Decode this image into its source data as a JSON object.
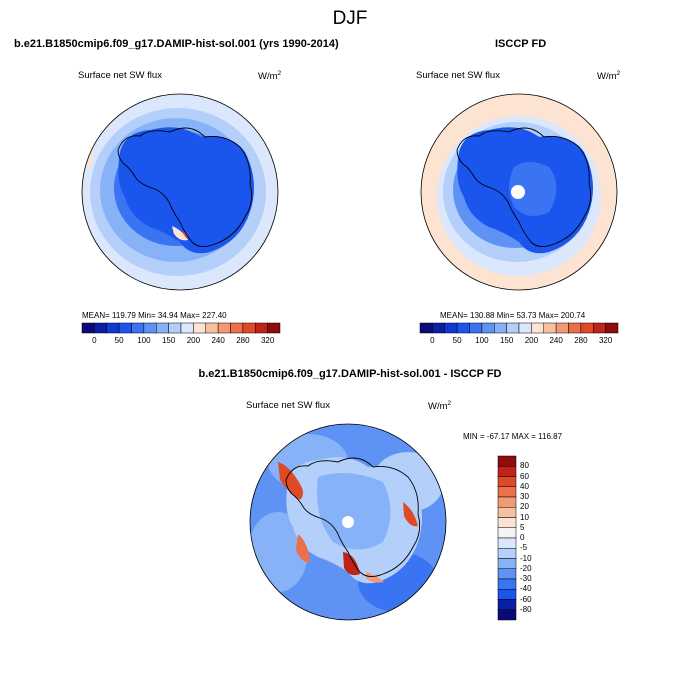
{
  "page": {
    "title": "DJF"
  },
  "panels": {
    "model": {
      "title": "b.e21.B1850cmip6.f09_g17.DAMIP-hist-sol.001 (yrs 1990-2014)",
      "variable": "Surface net SW flux",
      "units": "W/m",
      "units_sup": "2",
      "stats": "MEAN= 119.79  Min=  34.94  Max= 227.40"
    },
    "obs": {
      "title": "ISCCP FD",
      "variable": "Surface net SW flux",
      "units": "W/m",
      "units_sup": "2",
      "stats": "MEAN= 130.88  Min=  53.73  Max= 200.74"
    },
    "diff": {
      "title": "b.e21.B1850cmip6.f09_g17.DAMIP-hist-sol.001 - ISCCP FD",
      "variable": "Surface net SW flux",
      "units": "W/m",
      "units_sup": "2",
      "stats": "MIN = -67.17  MAX = 116.87"
    }
  },
  "chart_data": [
    {
      "type": "heatmap",
      "projection": "south polar stereographic",
      "title": "b.e21.B1850cmip6.f09_g17.DAMIP-hist-sol.001 (yrs 1990-2014)",
      "variable": "Surface net SW flux",
      "units": "W/m2",
      "mean": 119.79,
      "min": 34.94,
      "max": 227.4,
      "colorbar": {
        "orientation": "horizontal",
        "tick_labels": [
          "0",
          "50",
          "100",
          "150",
          "200",
          "240",
          "280",
          "320"
        ],
        "colors": [
          "#0a0a7a",
          "#0b1fa6",
          "#0d3bd2",
          "#1a56ee",
          "#3a74f2",
          "#5e93f5",
          "#88b2f7",
          "#b3cffa",
          "#dbe7fc",
          "#fde4d2",
          "#f8bfa0",
          "#f39a74",
          "#ec7049",
          "#de4a26",
          "#c0231a",
          "#8e0c0c"
        ]
      }
    },
    {
      "type": "heatmap",
      "projection": "south polar stereographic",
      "title": "ISCCP FD",
      "variable": "Surface net SW flux",
      "units": "W/m2",
      "mean": 130.88,
      "min": 53.73,
      "max": 200.74,
      "colorbar": {
        "orientation": "horizontal",
        "tick_labels": [
          "0",
          "50",
          "100",
          "150",
          "200",
          "240",
          "280",
          "320"
        ],
        "colors": [
          "#0a0a7a",
          "#0b1fa6",
          "#0d3bd2",
          "#1a56ee",
          "#3a74f2",
          "#5e93f5",
          "#88b2f7",
          "#b3cffa",
          "#dbe7fc",
          "#fde4d2",
          "#f8bfa0",
          "#f39a74",
          "#ec7049",
          "#de4a26",
          "#c0231a",
          "#8e0c0c"
        ]
      }
    },
    {
      "type": "heatmap",
      "projection": "south polar stereographic",
      "title": "b.e21.B1850cmip6.f09_g17.DAMIP-hist-sol.001 - ISCCP FD",
      "variable": "Surface net SW flux",
      "units": "W/m2",
      "min": -67.17,
      "max": 116.87,
      "colorbar": {
        "orientation": "vertical",
        "tick_labels": [
          "80",
          "60",
          "40",
          "30",
          "20",
          "10",
          "5",
          "0",
          "-5",
          "-10",
          "-20",
          "-30",
          "-40",
          "-60",
          "-80"
        ],
        "colors": [
          "#8e0c0c",
          "#c0231a",
          "#de4a26",
          "#ec7049",
          "#f39a74",
          "#f8bfa0",
          "#fde4d2",
          "#f4f4f4",
          "#dbe7fc",
          "#b3cffa",
          "#88b2f7",
          "#5e93f5",
          "#3a74f2",
          "#1a56ee",
          "#0b1fa6",
          "#0a0a7a"
        ]
      }
    }
  ]
}
